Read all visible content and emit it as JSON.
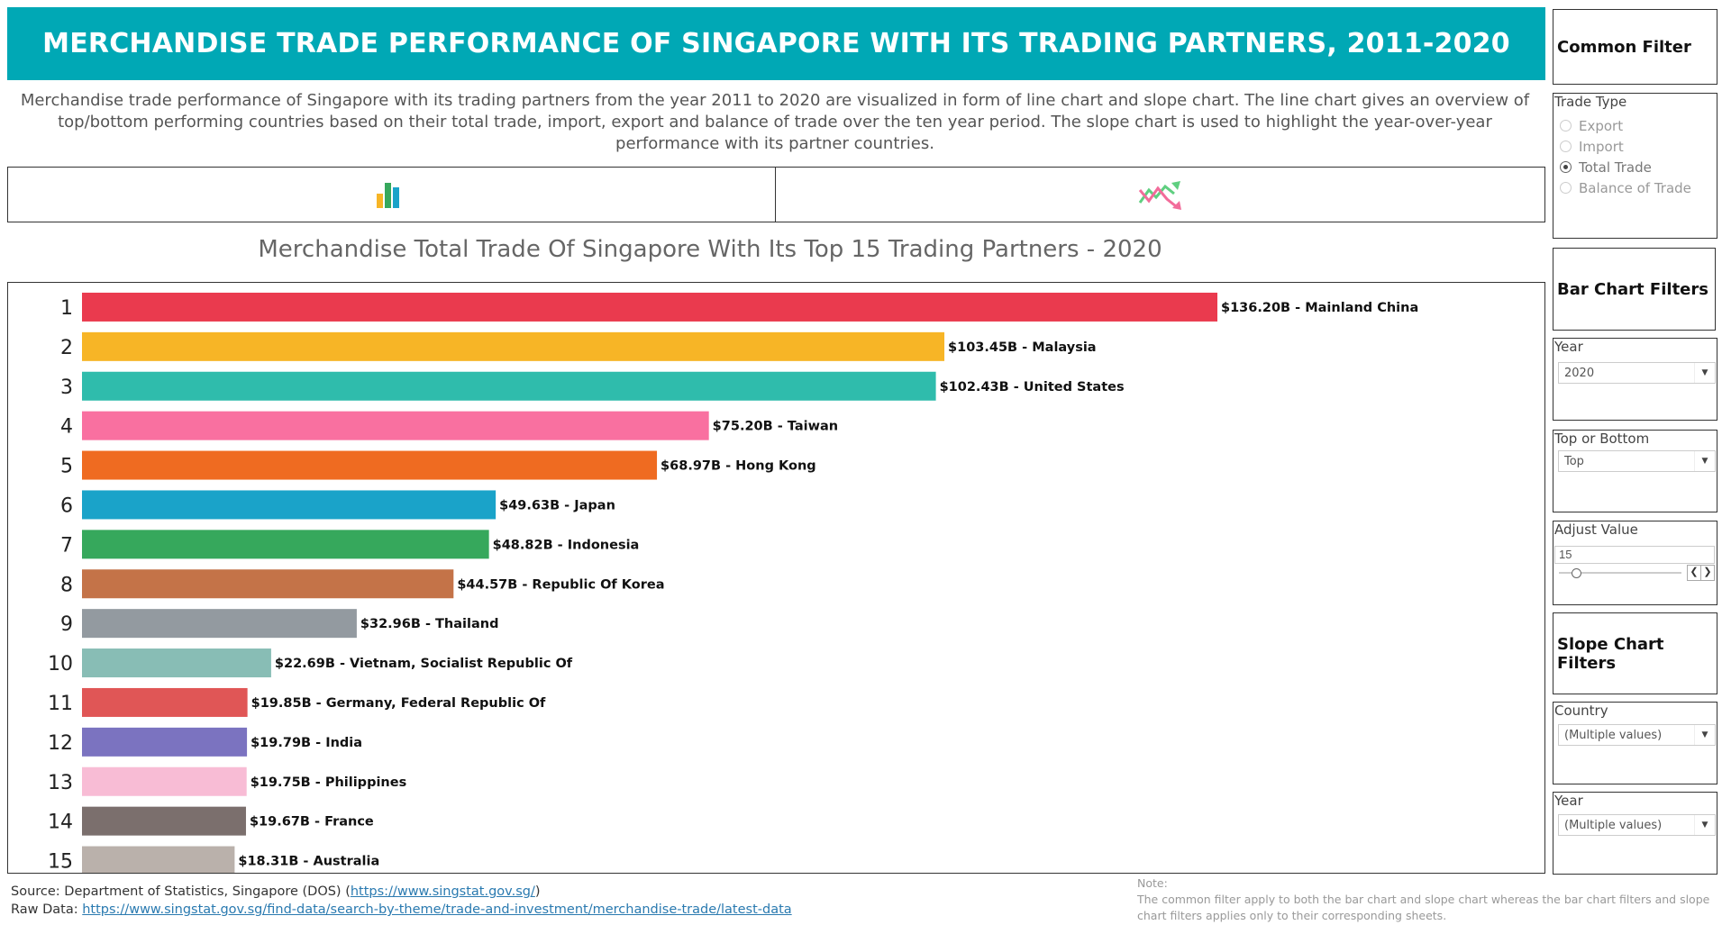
{
  "header": {
    "title": "MERCHANDISE TRADE PERFORMANCE OF SINGAPORE WITH ITS TRADING PARTNERS, 2011-2020",
    "description": "Merchandise trade performance of Singapore with its trading partners from the year 2011 to 2020 are visualized in form of line chart and slope chart. The line chart gives an overview of top/bottom performing countries based on their total trade, import, export and balance of trade over the ten year period. The slope chart is used to highlight the year-over-year performance with its partner countries."
  },
  "nav": {
    "bar_icon": "bar-chart-icon",
    "slope_icon": "slope-chart-icon"
  },
  "chart_data": {
    "type": "bar",
    "orientation": "horizontal",
    "title": "Merchandise Total Trade Of Singapore With Its Top 15 Trading Partners - 2020",
    "ranks": [
      "1",
      "2",
      "3",
      "4",
      "5",
      "6",
      "7",
      "8",
      "9",
      "10",
      "11",
      "12",
      "13",
      "14",
      "15"
    ],
    "categories": [
      "Mainland China",
      "Malaysia",
      "United States",
      "Taiwan",
      "Hong Kong",
      "Japan",
      "Indonesia",
      "Republic Of Korea",
      "Thailand",
      "Vietnam, Socialist Republic Of",
      "Germany, Federal Republic Of",
      "India",
      "Philippines",
      "France",
      "Australia"
    ],
    "values": [
      136.2,
      103.45,
      102.43,
      75.2,
      68.97,
      49.63,
      48.82,
      44.57,
      32.96,
      22.69,
      19.85,
      19.79,
      19.75,
      19.67,
      18.31
    ],
    "labels": [
      "$136.20B - Mainland China",
      "$103.45B - Malaysia",
      "$102.43B - United States",
      "$75.20B - Taiwan",
      "$68.97B - Hong Kong",
      "$49.63B - Japan",
      "$48.82B - Indonesia",
      "$44.57B - Republic Of Korea",
      "$32.96B - Thailand",
      "$22.69B - Vietnam, Socialist Republic Of",
      "$19.85B - Germany, Federal Republic Of",
      "$19.79B - India",
      "$19.75B - Philippines",
      "$19.67B - France",
      "$18.31B - Australia"
    ],
    "colors": [
      "#ea3a4e",
      "#f7b526",
      "#2fbcac",
      "#f970a0",
      "#ef6b21",
      "#1aa3c9",
      "#36a85c",
      "#c47348",
      "#939aa0",
      "#88bdb5",
      "#e05656",
      "#7b73c0",
      "#f8bcd5",
      "#7b6f6d",
      "#bab1ab"
    ],
    "unit": "B",
    "grid": false,
    "legend": "none"
  },
  "footer": {
    "source_prefix": "Source: Department of Statistics, Singapore (DOS) (",
    "source_link": "https://www.singstat.gov.sg/",
    "source_suffix": ")",
    "raw_prefix": "Raw Data: ",
    "raw_link": "https://www.singstat.gov.sg/find-data/search-by-theme/trade-and-investment/merchandise-trade/latest-data",
    "note_title": "Note:",
    "note_text": "The common filter apply to both the bar chart and slope chart whereas the bar chart filters and slope chart filters applies only to their corresponding sheets."
  },
  "filters": {
    "common_title": "Common Filter",
    "trade_type_label": "Trade Type",
    "trade_types": [
      "Export",
      "Import",
      "Total Trade",
      "Balance of Trade"
    ],
    "trade_type_selected": "Total Trade",
    "bar_title": "Bar Chart Filters",
    "year_label": "Year",
    "year_value": "2020",
    "top_bottom_label": "Top or Bottom",
    "top_bottom_value": "Top",
    "adjust_label": "Adjust Value",
    "adjust_value": "15",
    "slope_title": "Slope Chart Filters",
    "country_label": "Country",
    "country_value": "(Multiple values)",
    "slope_year_label": "Year",
    "slope_year_value": "(Multiple values)"
  }
}
